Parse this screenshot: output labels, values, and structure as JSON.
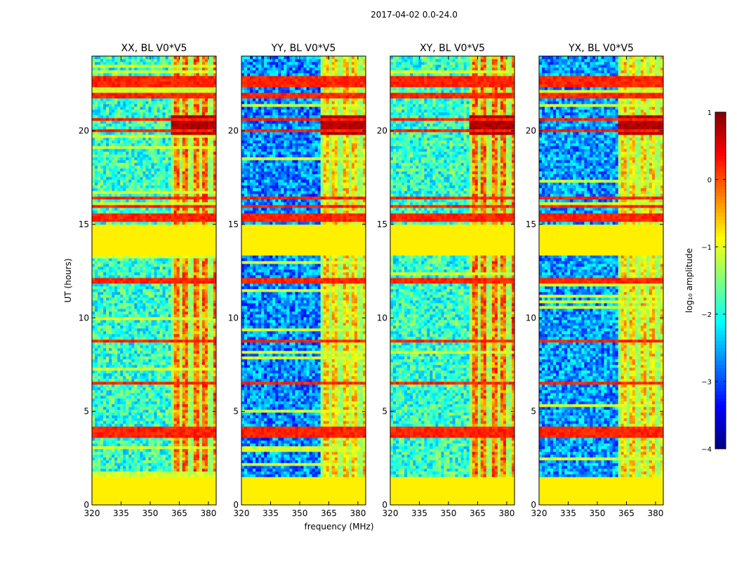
{
  "chart_data": {
    "type": "heatmap",
    "suptitle": "2017-04-02 0.0-24.0",
    "panels": [
      {
        "title": "XX, BL V0*V5",
        "pol": "XX",
        "base_level": -1.9,
        "band_level": -0.3
      },
      {
        "title": "YY, BL V0*V5",
        "pol": "YY",
        "base_level": -2.7,
        "band_level": -0.8
      },
      {
        "title": "XY, BL V0*V5",
        "pol": "XY",
        "base_level": -1.9,
        "band_level": -0.3
      },
      {
        "title": "YX, BL V0*V5",
        "pol": "YX",
        "base_level": -2.6,
        "band_level": -0.8
      }
    ],
    "xlabel": "frequency (MHz)",
    "ylabel": "UT (hours)",
    "xlim": [
      320,
      384
    ],
    "ylim": [
      0,
      24
    ],
    "xticks": [
      320,
      335,
      350,
      365,
      380
    ],
    "yticks": [
      0,
      5,
      10,
      15,
      20
    ],
    "band_freq_range": [
      360.5,
      384
    ],
    "band_channels_mhz": [
      362,
      366,
      371,
      376,
      381
    ],
    "flagged_ut_ranges": [
      [
        0,
        1.5
      ],
      [
        13.4,
        15.0
      ]
    ],
    "flag_value": -0.8,
    "rfi_ut_hours": [
      3.7,
      3.9,
      4.1,
      6.5,
      8.8,
      11.9,
      12.0,
      15.3,
      15.5,
      16.0,
      16.4,
      20.0,
      20.6,
      21.8,
      21.9,
      22.5,
      22.8
    ],
    "colorbar": {
      "label": "log₁₀ amplitude",
      "range": [
        -4,
        1
      ],
      "ticks": [
        "1",
        "0",
        "−1",
        "−2",
        "−3",
        "−4"
      ],
      "tick_values": [
        1,
        0,
        -1,
        -2,
        -3,
        -4
      ],
      "colormap": "jet"
    }
  }
}
